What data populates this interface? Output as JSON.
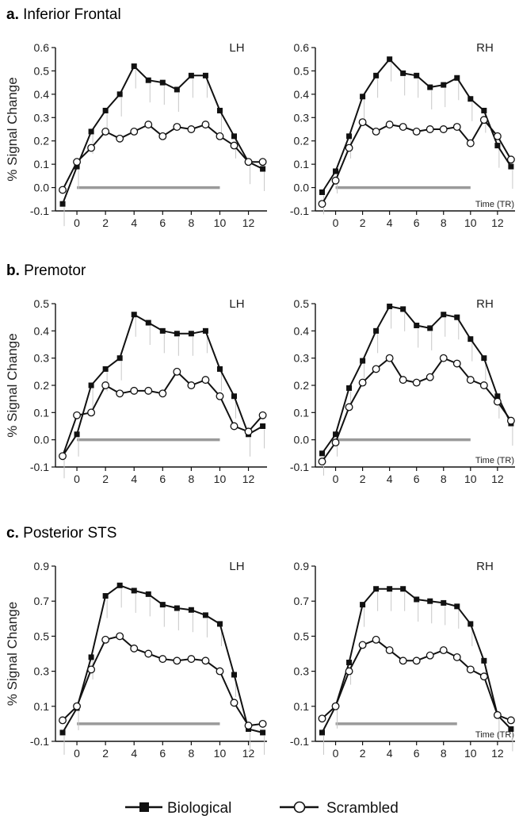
{
  "legend": {
    "biological": "Biological",
    "scrambled": "Scrambled"
  },
  "sections": [
    {
      "letter": "a.",
      "name": "Inferior Frontal"
    },
    {
      "letter": "b.",
      "name": "Premotor"
    },
    {
      "letter": "c.",
      "name": "Posterior STS"
    }
  ],
  "colors": {
    "line": "#111111",
    "error_bar": "#c8c8c8",
    "stimulus_bar": "#9a9a9a"
  },
  "chart_data": [
    {
      "type": "line",
      "section": "a",
      "hemisphere": "LH",
      "ylabel": "% Signal Change",
      "xlabel": "",
      "ylim": [
        -0.1,
        0.6
      ],
      "yticks": [
        -0.1,
        0.0,
        0.1,
        0.2,
        0.3,
        0.4,
        0.5,
        0.6
      ],
      "ytick_labels": [
        "-0.1",
        "0.0",
        "0.1",
        "0.2",
        "0.3",
        "0.4",
        "0.5",
        "0.6"
      ],
      "xlim": [
        -1.5,
        13.3
      ],
      "xticks": [
        0,
        2,
        4,
        6,
        8,
        10,
        12
      ],
      "x": [
        -1,
        0,
        1,
        2,
        3,
        4,
        5,
        6,
        7,
        8,
        9,
        10,
        11,
        12,
        13
      ],
      "stimulus_period": [
        0,
        10
      ],
      "series": [
        {
          "name": "Biological",
          "marker": "square",
          "values": [
            -0.07,
            0.09,
            0.24,
            0.33,
            0.4,
            0.52,
            0.46,
            0.45,
            0.42,
            0.48,
            0.48,
            0.33,
            0.22,
            0.11,
            0.08
          ]
        },
        {
          "name": "Scrambled",
          "marker": "circle",
          "values": [
            -0.01,
            0.11,
            0.17,
            0.24,
            0.21,
            0.24,
            0.27,
            0.22,
            0.26,
            0.25,
            0.27,
            0.22,
            0.18,
            0.11,
            0.11
          ]
        }
      ]
    },
    {
      "type": "line",
      "section": "a",
      "hemisphere": "RH",
      "ylabel": "",
      "xlabel": "Time (TR)",
      "ylim": [
        -0.1,
        0.6
      ],
      "yticks": [
        -0.1,
        0.0,
        0.1,
        0.2,
        0.3,
        0.4,
        0.5,
        0.6
      ],
      "ytick_labels": [
        "-0.1",
        "0.0",
        "0.1",
        "0.2",
        "0.3",
        "0.4",
        "0.5",
        "0.6"
      ],
      "xlim": [
        -1.5,
        13.3
      ],
      "xticks": [
        0,
        2,
        4,
        6,
        8,
        10,
        12
      ],
      "x": [
        -1,
        0,
        1,
        2,
        3,
        4,
        5,
        6,
        7,
        8,
        9,
        10,
        11,
        12,
        13
      ],
      "stimulus_period": [
        0,
        10
      ],
      "series": [
        {
          "name": "Biological",
          "marker": "square",
          "values": [
            -0.02,
            0.07,
            0.22,
            0.39,
            0.48,
            0.55,
            0.49,
            0.48,
            0.43,
            0.44,
            0.47,
            0.38,
            0.33,
            0.18,
            0.09
          ]
        },
        {
          "name": "Scrambled",
          "marker": "circle",
          "values": [
            -0.07,
            0.03,
            0.17,
            0.28,
            0.24,
            0.27,
            0.26,
            0.24,
            0.25,
            0.25,
            0.26,
            0.19,
            0.29,
            0.22,
            0.12
          ]
        }
      ]
    },
    {
      "type": "line",
      "section": "b",
      "hemisphere": "LH",
      "ylabel": "% Signal Change",
      "xlabel": "",
      "ylim": [
        -0.1,
        0.5
      ],
      "yticks": [
        -0.1,
        0.0,
        0.1,
        0.2,
        0.3,
        0.4,
        0.5
      ],
      "ytick_labels": [
        "-0.1",
        "0.0",
        "0.1",
        "0.2",
        "0.3",
        "0.4",
        "0.5"
      ],
      "xlim": [
        -1.5,
        13.3
      ],
      "xticks": [
        0,
        2,
        4,
        6,
        8,
        10,
        12
      ],
      "x": [
        -1,
        0,
        1,
        2,
        3,
        4,
        5,
        6,
        7,
        8,
        9,
        10,
        11,
        12,
        13
      ],
      "stimulus_period": [
        0,
        10
      ],
      "series": [
        {
          "name": "Biological",
          "marker": "square",
          "values": [
            -0.06,
            0.02,
            0.2,
            0.26,
            0.3,
            0.46,
            0.43,
            0.4,
            0.39,
            0.39,
            0.4,
            0.26,
            0.16,
            0.02,
            0.05
          ]
        },
        {
          "name": "Scrambled",
          "marker": "circle",
          "values": [
            -0.06,
            0.09,
            0.1,
            0.2,
            0.17,
            0.18,
            0.18,
            0.17,
            0.25,
            0.2,
            0.22,
            0.16,
            0.05,
            0.03,
            0.09
          ]
        }
      ]
    },
    {
      "type": "line",
      "section": "b",
      "hemisphere": "RH",
      "ylabel": "",
      "xlabel": "Time (TR)",
      "ylim": [
        -0.1,
        0.5
      ],
      "yticks": [
        -0.1,
        0.0,
        0.1,
        0.2,
        0.3,
        0.4,
        0.5
      ],
      "ytick_labels": [
        "-0.1",
        "0.0",
        "0.1",
        "0.2",
        "0.3",
        "0.4",
        "0.5"
      ],
      "xlim": [
        -1.5,
        13.3
      ],
      "xticks": [
        0,
        2,
        4,
        6,
        8,
        10,
        12
      ],
      "x": [
        -1,
        0,
        1,
        2,
        3,
        4,
        5,
        6,
        7,
        8,
        9,
        10,
        11,
        12,
        13
      ],
      "stimulus_period": [
        0,
        10
      ],
      "series": [
        {
          "name": "Biological",
          "marker": "square",
          "values": [
            -0.05,
            0.02,
            0.19,
            0.29,
            0.4,
            0.49,
            0.48,
            0.42,
            0.41,
            0.46,
            0.45,
            0.37,
            0.3,
            0.16,
            0.06
          ]
        },
        {
          "name": "Scrambled",
          "marker": "circle",
          "values": [
            -0.08,
            -0.01,
            0.12,
            0.21,
            0.26,
            0.3,
            0.22,
            0.21,
            0.23,
            0.3,
            0.28,
            0.22,
            0.2,
            0.14,
            0.07
          ]
        }
      ]
    },
    {
      "type": "line",
      "section": "c",
      "hemisphere": "LH",
      "ylabel": "% Signal Change",
      "xlabel": "",
      "ylim": [
        -0.1,
        0.9
      ],
      "yticks": [
        -0.1,
        0.1,
        0.3,
        0.5,
        0.7,
        0.9
      ],
      "ytick_labels": [
        "-0.1",
        "0.1",
        "0.3",
        "0.5",
        "0.7",
        "0.9"
      ],
      "xlim": [
        -1.5,
        13.3
      ],
      "xticks": [
        0,
        2,
        4,
        6,
        8,
        10,
        12
      ],
      "x": [
        -1,
        0,
        1,
        2,
        3,
        4,
        5,
        6,
        7,
        8,
        9,
        10,
        11,
        12,
        13
      ],
      "stimulus_period": [
        0,
        10
      ],
      "series": [
        {
          "name": "Biological",
          "marker": "square",
          "values": [
            -0.05,
            0.09,
            0.38,
            0.73,
            0.79,
            0.76,
            0.74,
            0.68,
            0.66,
            0.65,
            0.62,
            0.57,
            0.28,
            -0.03,
            -0.05
          ]
        },
        {
          "name": "Scrambled",
          "marker": "circle",
          "values": [
            0.02,
            0.1,
            0.31,
            0.48,
            0.5,
            0.43,
            0.4,
            0.37,
            0.36,
            0.37,
            0.36,
            0.3,
            0.12,
            -0.01,
            0.0
          ]
        }
      ]
    },
    {
      "type": "line",
      "section": "c",
      "hemisphere": "RH",
      "ylabel": "",
      "xlabel": "Time (TR)",
      "ylim": [
        -0.1,
        0.9
      ],
      "yticks": [
        -0.1,
        0.1,
        0.3,
        0.5,
        0.7,
        0.9
      ],
      "ytick_labels": [
        "-0.1",
        "0.1",
        "0.3",
        "0.5",
        "0.7",
        "0.9"
      ],
      "xlim": [
        -1.5,
        13.3
      ],
      "xticks": [
        0,
        2,
        4,
        6,
        8,
        10,
        12
      ],
      "x": [
        -1,
        0,
        1,
        2,
        3,
        4,
        5,
        6,
        7,
        8,
        9,
        10,
        11,
        12,
        13
      ],
      "stimulus_period": [
        0,
        9
      ],
      "series": [
        {
          "name": "Biological",
          "marker": "square",
          "values": [
            -0.05,
            0.1,
            0.35,
            0.68,
            0.77,
            0.77,
            0.77,
            0.71,
            0.7,
            0.69,
            0.67,
            0.57,
            0.36,
            0.05,
            -0.03
          ]
        },
        {
          "name": "Scrambled",
          "marker": "circle",
          "values": [
            0.03,
            0.1,
            0.3,
            0.45,
            0.48,
            0.42,
            0.36,
            0.36,
            0.39,
            0.42,
            0.38,
            0.31,
            0.27,
            0.05,
            0.02
          ]
        }
      ]
    }
  ]
}
